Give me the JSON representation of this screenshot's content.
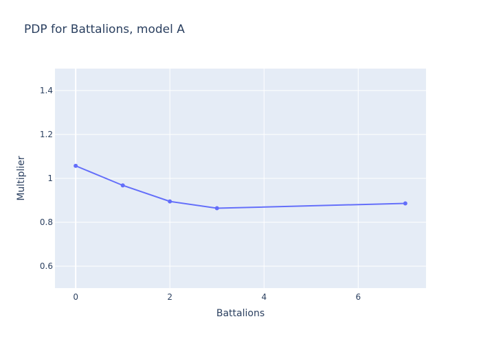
{
  "chart_data": {
    "type": "line",
    "title": "PDP for Battalions, model A",
    "xlabel": "Battalions",
    "ylabel": "Multiplier",
    "x": [
      0,
      1,
      2,
      3,
      7
    ],
    "series": [
      {
        "values": [
          1.057,
          0.968,
          0.895,
          0.864,
          0.886
        ]
      }
    ],
    "xlim": [
      -0.44,
      7.44
    ],
    "ylim": [
      0.5,
      1.5
    ],
    "xticks": [
      0,
      2,
      4,
      6
    ],
    "xtick_labels": [
      "0",
      "2",
      "4",
      "6"
    ],
    "yticks": [
      0.6,
      0.8,
      1.0,
      1.2,
      1.4
    ],
    "ytick_labels": [
      "0.6",
      "0.8",
      "1",
      "1.2",
      "1.4"
    ],
    "grid": true,
    "line_color": "#636efa",
    "plot_bg": "#e5ecf6",
    "grid_color": "#ffffff"
  }
}
